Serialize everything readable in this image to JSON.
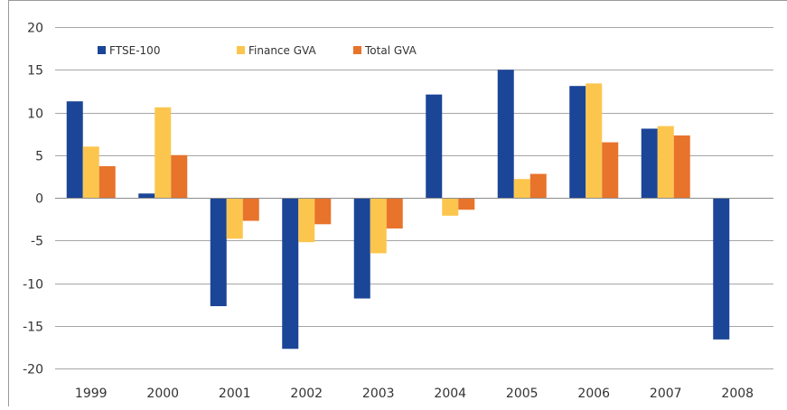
{
  "chart_data": {
    "type": "bar",
    "title": "",
    "xlabel": "",
    "ylabel": "",
    "categories": [
      "1999",
      "2000",
      "2001",
      "2002",
      "2003",
      "2004",
      "2005",
      "2006",
      "2007",
      "2008"
    ],
    "ylim": [
      -20,
      20
    ],
    "yticks": [
      20,
      15,
      10,
      5,
      0,
      -5,
      -10,
      -15,
      -20
    ],
    "grid": true,
    "legend_position": "top-left",
    "series": [
      {
        "name": "FTSE-100",
        "color": "#1b4597",
        "values": [
          11.3,
          0.5,
          -12.7,
          -17.7,
          -11.8,
          12.1,
          15.0,
          13.1,
          8.1,
          -16.6
        ]
      },
      {
        "name": "Finance GVA",
        "color": "#fcc64e",
        "values": [
          6.0,
          10.6,
          -4.8,
          -5.2,
          -6.5,
          -2.1,
          2.2,
          13.4,
          8.4,
          null
        ]
      },
      {
        "name": "Total GVA",
        "color": "#e8732b",
        "values": [
          3.7,
          5.0,
          -2.7,
          -3.1,
          -3.6,
          -1.4,
          2.8,
          6.5,
          7.3,
          null
        ]
      }
    ]
  }
}
